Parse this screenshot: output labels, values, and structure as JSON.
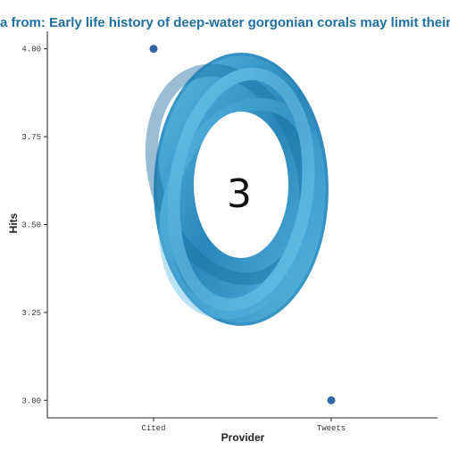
{
  "chart_data": {
    "type": "scatter",
    "title": "a from: Early life history of deep-water gorgonian corals may limit their ab",
    "xlabel": "Provider",
    "ylabel": "Hits",
    "categories": [
      "Cited",
      "Tweets"
    ],
    "points": [
      {
        "x": "Cited",
        "y": 4.0
      },
      {
        "x": "Tweets",
        "y": 3.0
      }
    ],
    "ylim": [
      2.95,
      4.05
    ],
    "yticks": [
      {
        "value": 3.0,
        "label": "3.00"
      },
      {
        "value": 3.25,
        "label": "3.25"
      },
      {
        "value": 3.5,
        "label": "3.50"
      },
      {
        "value": 3.75,
        "label": "3.75"
      },
      {
        "value": 4.0,
        "label": "4.00"
      }
    ],
    "grid": false,
    "point_color": "#3466a5",
    "badge": {
      "value": "3",
      "ring_colors": [
        "#5bbde6",
        "#2a86bb"
      ]
    }
  }
}
